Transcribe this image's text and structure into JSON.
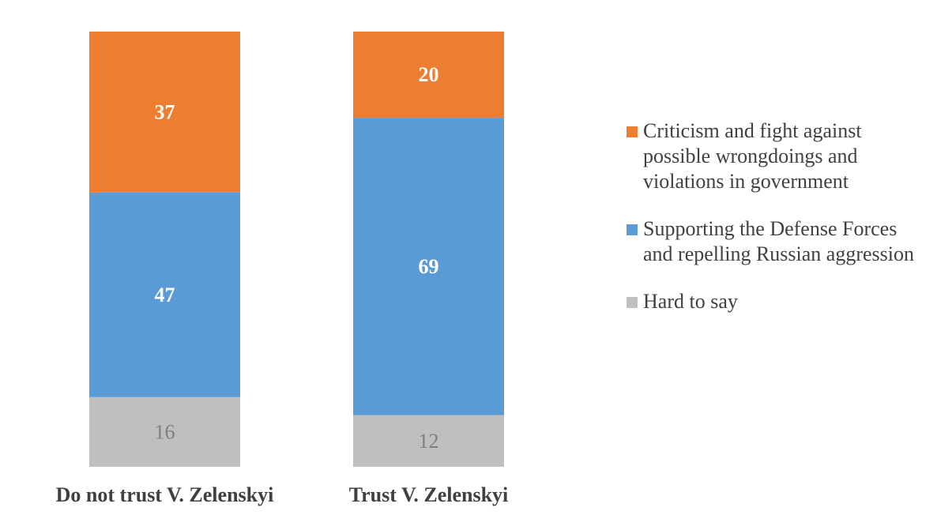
{
  "chart_data": {
    "type": "bar",
    "stacked": true,
    "percent_stacked": true,
    "categories": [
      "Do not trust V. Zelenskyi",
      "Trust V. Zelenskyi"
    ],
    "series": [
      {
        "name": "Hard to say",
        "values": [
          16,
          12
        ],
        "color": "#bfbfbf",
        "label_color": "#7f7f7f",
        "label_bold": false
      },
      {
        "name": "Supporting the Defense Forces and repelling Russian aggression",
        "values": [
          47,
          69
        ],
        "color": "#5b9bd5",
        "label_color": "#ffffff",
        "label_bold": true
      },
      {
        "name": "Criticism and fight against possible wrongdoings and violations in government",
        "values": [
          37,
          20
        ],
        "color": "#ed7d31",
        "label_color": "#ffffff",
        "label_bold": true
      }
    ],
    "legend": {
      "position": "right",
      "order": [
        {
          "name": "Criticism and fight against possible wrongdoings and violations in government",
          "color": "#ed7d31"
        },
        {
          "name": "Supporting the Defense Forces and repelling Russian aggression",
          "color": "#5b9bd5"
        },
        {
          "name": "Hard to say",
          "color": "#bfbfbf"
        }
      ]
    },
    "grid": false
  }
}
